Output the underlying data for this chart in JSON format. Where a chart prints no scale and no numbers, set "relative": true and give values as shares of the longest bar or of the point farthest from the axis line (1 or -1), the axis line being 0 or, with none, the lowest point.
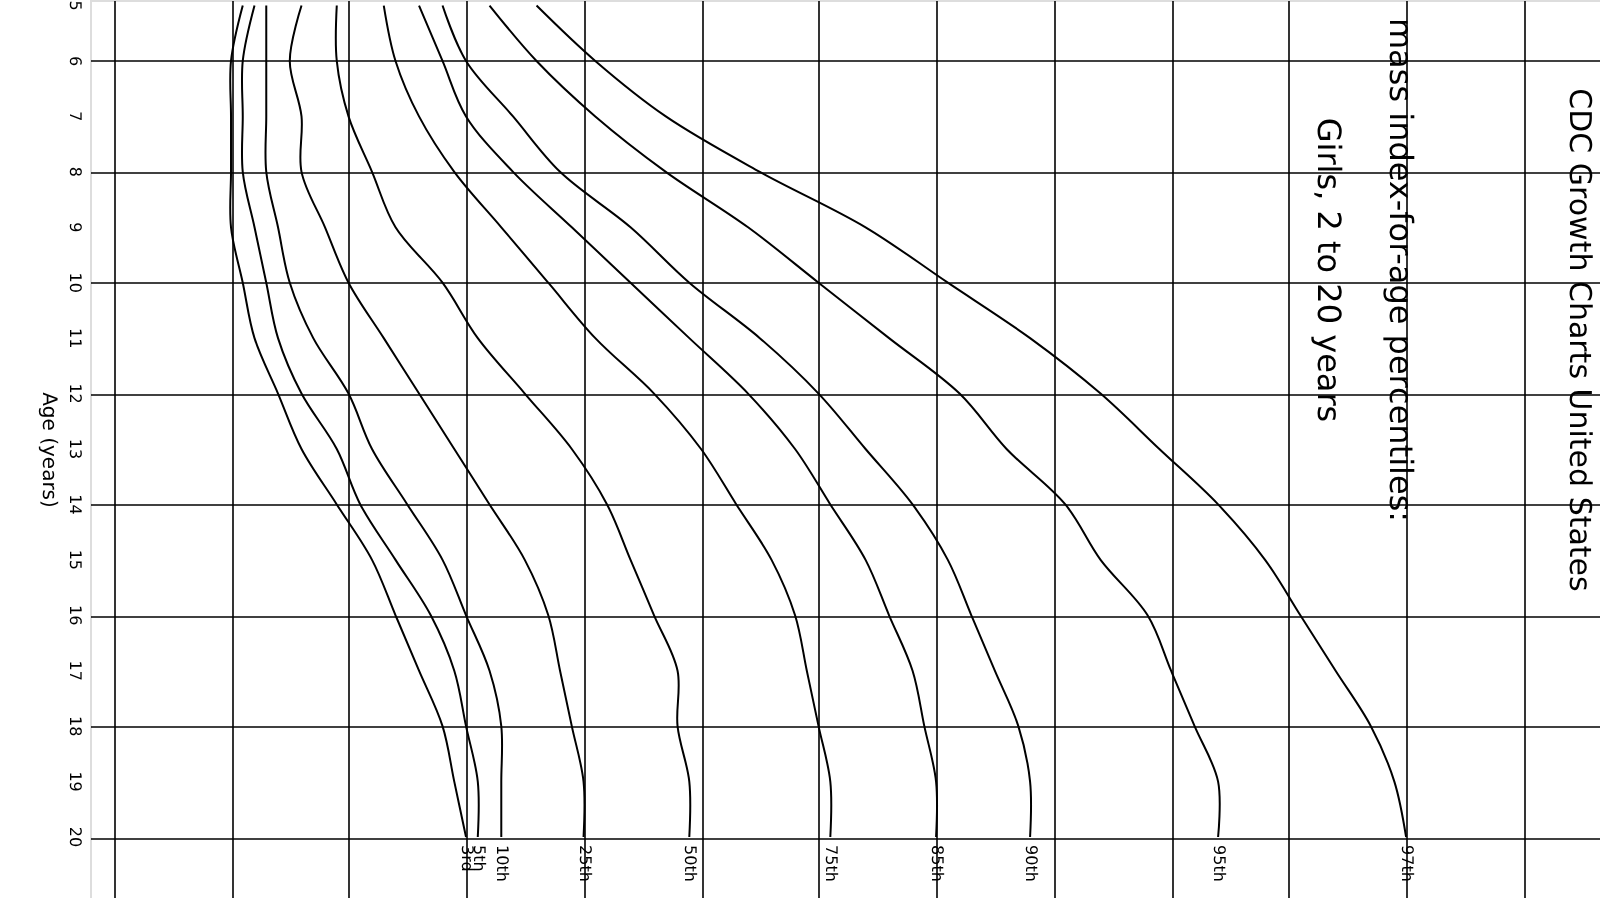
{
  "chart_data": {
    "type": "line",
    "orientation": "horizontal",
    "relative": true,
    "title": "CDC Growth Charts United States",
    "subtitle": "mass index-for-age percentiles:\nGirls, 2 to 20 years",
    "ylabel": "Age (years)",
    "x": [
      5,
      6,
      7,
      8,
      9,
      10,
      11,
      12,
      13,
      14,
      15,
      16,
      17,
      18,
      19,
      20
    ],
    "ylim": [
      21.1,
      4.9
    ],
    "yticks": [
      5,
      6,
      7,
      8,
      9,
      10,
      11,
      12,
      13,
      14,
      15,
      16,
      17,
      18,
      19,
      20
    ],
    "grid": true,
    "marker": "none",
    "line_style": "solid",
    "series": [
      {
        "name": "3rd",
        "color": "#000000",
        "values": [
          0.01,
          0.0,
          0,
          0,
          0.0,
          0.01,
          0.02,
          0.04,
          0.06,
          0.09,
          0.12,
          0.14,
          0.16,
          0.18,
          0.19,
          0.2
        ]
      },
      {
        "name": "5th",
        "color": "#000000",
        "values": [
          0.02,
          0.01,
          0.01,
          0.01,
          0.02,
          0.03,
          0.04,
          0.06,
          0.09,
          0.11,
          0.14,
          0.17,
          0.19,
          0.2,
          0.21,
          0.21
        ]
      },
      {
        "name": "10th",
        "color": "#000000",
        "values": [
          0.03,
          0.03,
          0.03,
          0.03,
          0.04,
          0.05,
          0.07,
          0.1,
          0.12,
          0.15,
          0.18,
          0.2,
          0.22,
          0.23,
          0.23,
          0.23
        ]
      },
      {
        "name": "25th",
        "color": "#000000",
        "values": [
          0.06,
          0.05,
          0.06,
          0.06,
          0.08,
          0.1,
          0.13,
          0.16,
          0.19,
          0.22,
          0.25,
          0.27,
          0.28,
          0.29,
          0.3,
          0.3
        ]
      },
      {
        "name": "50th",
        "color": "#000000",
        "values": [
          0.09,
          0.09,
          0.1,
          0.12,
          0.14,
          0.18,
          0.21,
          0.25,
          0.29,
          0.32,
          0.34,
          0.36,
          0.38,
          0.38,
          0.39,
          0.39
        ]
      },
      {
        "name": "75th",
        "color": "#000000",
        "values": [
          0.13,
          0.14,
          0.16,
          0.19,
          0.23,
          0.27,
          0.31,
          0.36,
          0.4,
          0.43,
          0.46,
          0.48,
          0.49,
          0.5,
          0.51,
          0.51
        ]
      },
      {
        "name": "85th",
        "color": "#000000",
        "values": [
          0.16,
          0.18,
          0.2,
          0.24,
          0.29,
          0.34,
          0.39,
          0.44,
          0.48,
          0.51,
          0.54,
          0.56,
          0.58,
          0.59,
          0.6,
          0.6
        ]
      },
      {
        "name": "90th",
        "color": "#000000",
        "values": [
          0.18,
          0.2,
          0.24,
          0.28,
          0.34,
          0.39,
          0.45,
          0.5,
          0.54,
          0.58,
          0.61,
          0.63,
          0.65,
          0.67,
          0.68,
          0.68
        ]
      },
      {
        "name": "95th",
        "color": "#000000",
        "values": [
          0.22,
          0.26,
          0.31,
          0.37,
          0.44,
          0.5,
          0.56,
          0.62,
          0.66,
          0.71,
          0.74,
          0.78,
          0.8,
          0.82,
          0.84,
          0.84
        ]
      },
      {
        "name": "97th",
        "color": "#000000",
        "values": [
          0.26,
          0.31,
          0.37,
          0.45,
          0.54,
          0.61,
          0.68,
          0.74,
          0.79,
          0.84,
          0.88,
          0.91,
          0.94,
          0.97,
          0.99,
          1
        ]
      }
    ]
  }
}
